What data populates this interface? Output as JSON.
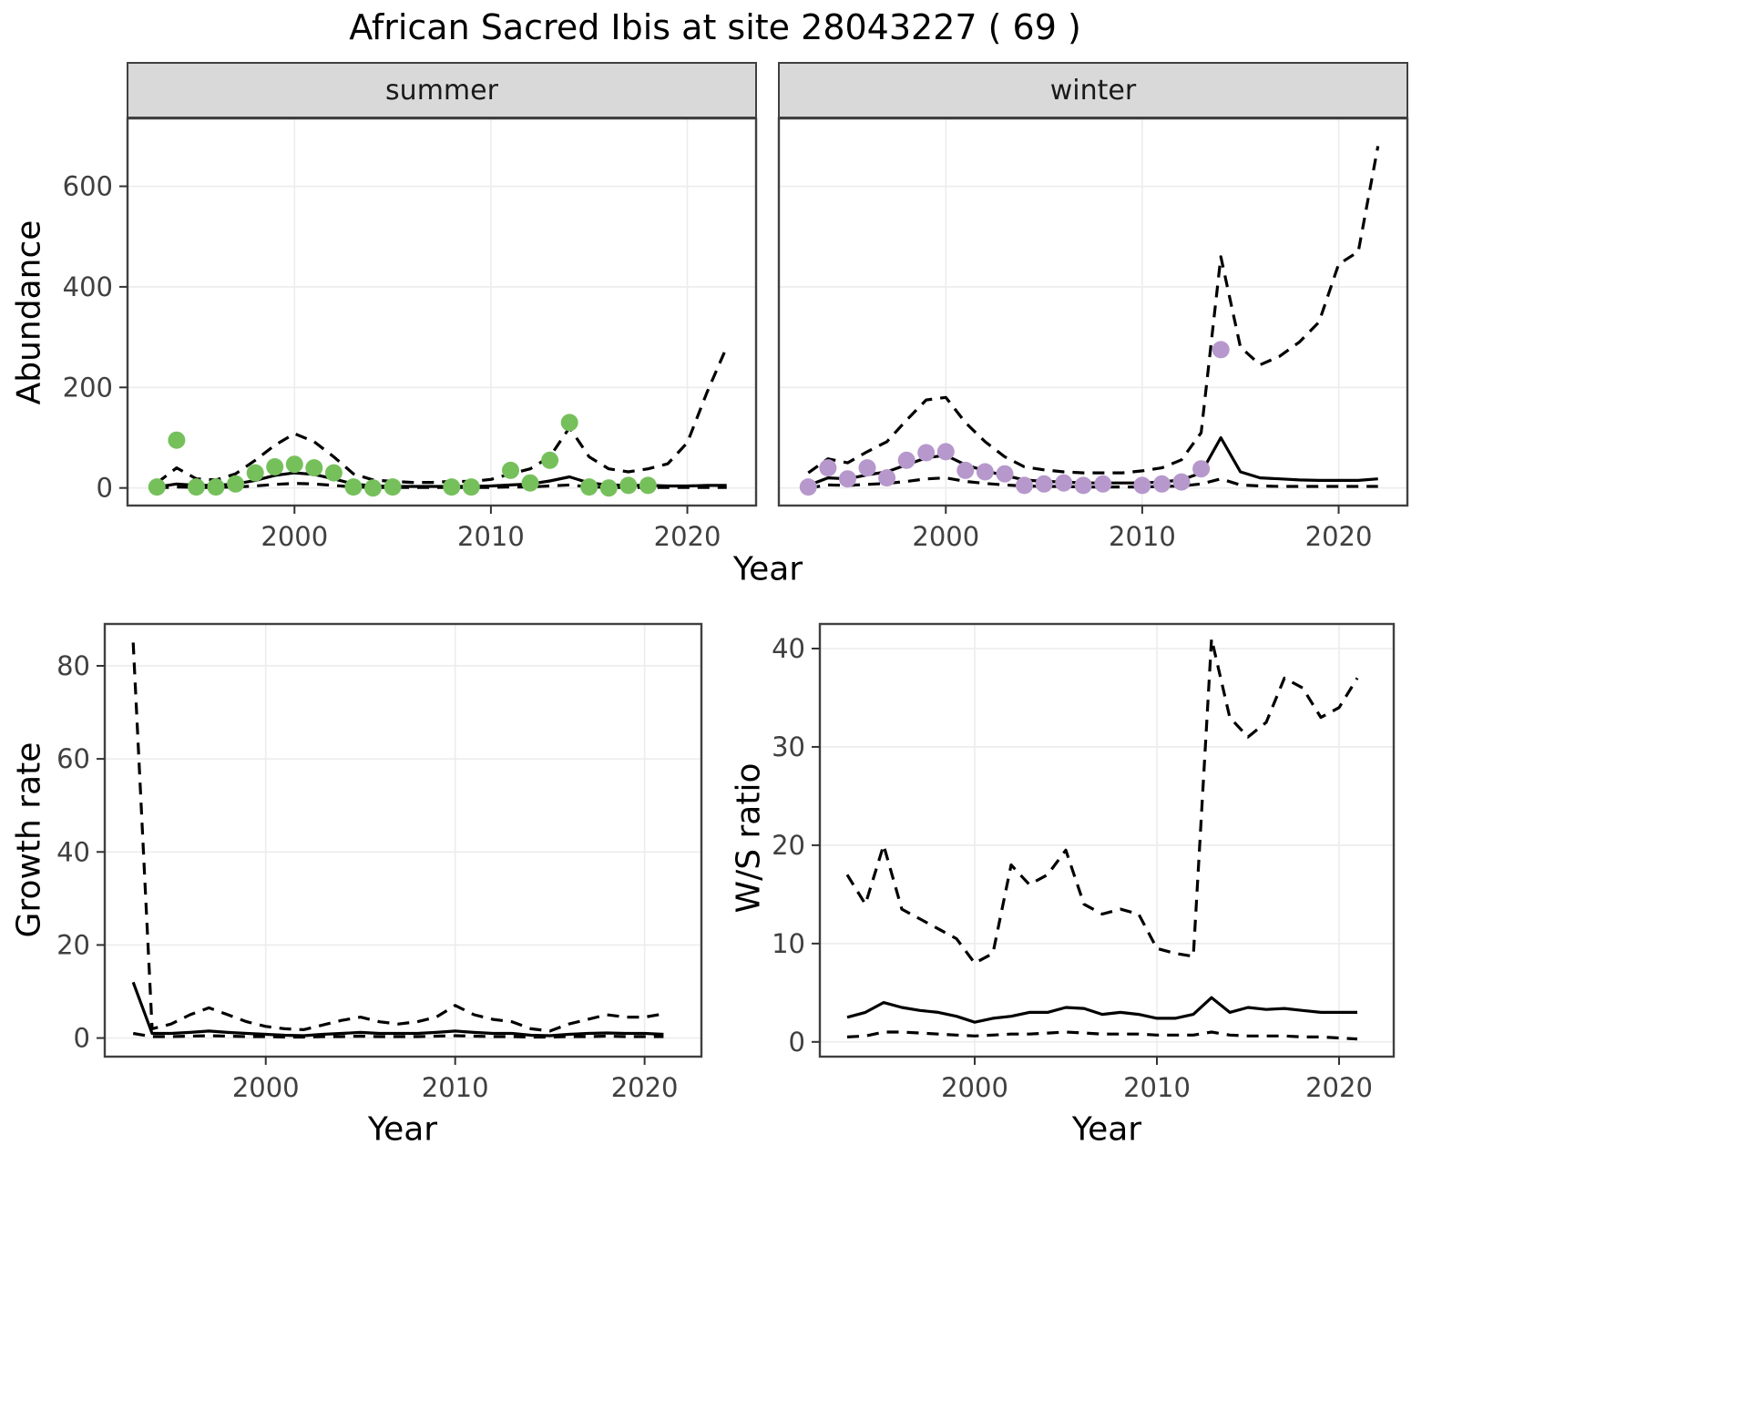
{
  "title": "African Sacred Ibis at site 28043227 ( 69 )",
  "facets": {
    "summer": "summer",
    "winter": "winter"
  },
  "axis_labels": {
    "abundance": "Abundance",
    "growth_rate": "Growth rate",
    "ws_ratio": "W/S ratio",
    "year_top": "Year",
    "year_bottom_left": "Year",
    "year_bottom_right": "Year"
  },
  "colors": {
    "summer_point": "#76c05c",
    "winter_point": "#b698cc",
    "line": "#000000",
    "strip_bg": "#d9d9d9",
    "panel_border": "#404040",
    "grid": "#ececec"
  },
  "chart_data": [
    {
      "type": "line",
      "name": "abundance-summer",
      "facet": "summer",
      "xlabel": "Year",
      "ylabel": "Abundance",
      "xlim": [
        1991.5,
        2023.5
      ],
      "ylim": [
        -35,
        735
      ],
      "xticks": [
        2000,
        2010,
        2020
      ],
      "yticks": [
        0,
        200,
        400,
        600
      ],
      "grid": true,
      "legend": "none",
      "series": [
        {
          "name": "median",
          "style": "solid",
          "x": [
            1993,
            1994,
            1995,
            1996,
            1997,
            1998,
            1999,
            2000,
            2001,
            2002,
            2003,
            2004,
            2005,
            2006,
            2007,
            2008,
            2009,
            2010,
            2011,
            2012,
            2013,
            2014,
            2015,
            2016,
            2017,
            2018,
            2019,
            2020,
            2021,
            2022
          ],
          "y": [
            2,
            8,
            5,
            5,
            8,
            15,
            25,
            30,
            27,
            18,
            8,
            4,
            3,
            3,
            3,
            3,
            3,
            4,
            6,
            8,
            14,
            22,
            10,
            6,
            5,
            5,
            4,
            4,
            5,
            5
          ]
        },
        {
          "name": "upper-ci",
          "style": "dashed",
          "x": [
            1993,
            1994,
            1995,
            1996,
            1997,
            1998,
            1999,
            2000,
            2001,
            2002,
            2003,
            2004,
            2005,
            2006,
            2007,
            2008,
            2009,
            2010,
            2011,
            2012,
            2013,
            2014,
            2015,
            2016,
            2017,
            2018,
            2019,
            2020,
            2021,
            2022
          ],
          "y": [
            10,
            40,
            18,
            16,
            28,
            55,
            85,
            108,
            92,
            62,
            28,
            16,
            13,
            11,
            11,
            13,
            13,
            17,
            28,
            38,
            62,
            120,
            62,
            38,
            32,
            38,
            48,
            90,
            190,
            280
          ]
        },
        {
          "name": "lower-ci",
          "style": "dashed",
          "x": [
            1993,
            1994,
            1995,
            1996,
            1997,
            1998,
            1999,
            2000,
            2001,
            2002,
            2003,
            2004,
            2005,
            2006,
            2007,
            2008,
            2009,
            2010,
            2011,
            2012,
            2013,
            2014,
            2015,
            2016,
            2017,
            2018,
            2019,
            2020,
            2021,
            2022
          ],
          "y": [
            0,
            2,
            1,
            1,
            2,
            4,
            7,
            9,
            8,
            5,
            2,
            1,
            1,
            1,
            1,
            1,
            1,
            1,
            2,
            2,
            4,
            6,
            2,
            1,
            1,
            1,
            1,
            1,
            1,
            1
          ]
        }
      ],
      "points": {
        "name": "observed-summer-counts",
        "color": "#76c05c",
        "x": [
          1993,
          1994,
          1995,
          1996,
          1997,
          1998,
          1999,
          2000,
          2001,
          2002,
          2003,
          2004,
          2005,
          2008,
          2009,
          2011,
          2012,
          2013,
          2014,
          2015,
          2016,
          2017,
          2018
        ],
        "y": [
          2,
          95,
          2,
          2,
          8,
          30,
          42,
          47,
          40,
          30,
          2,
          0,
          2,
          2,
          2,
          35,
          10,
          55,
          130,
          2,
          0,
          5,
          5
        ]
      }
    },
    {
      "type": "line",
      "name": "abundance-winter",
      "facet": "winter",
      "xlabel": "Year",
      "ylabel": "Abundance",
      "xlim": [
        1991.5,
        2023.5
      ],
      "ylim": [
        -35,
        735
      ],
      "xticks": [
        2000,
        2010,
        2020
      ],
      "yticks": [
        0,
        200,
        400,
        600
      ],
      "grid": true,
      "legend": "none",
      "series": [
        {
          "name": "median",
          "style": "solid",
          "x": [
            1993,
            1994,
            1995,
            1996,
            1997,
            1998,
            1999,
            2000,
            2001,
            2002,
            2003,
            2004,
            2005,
            2006,
            2007,
            2008,
            2009,
            2010,
            2011,
            2012,
            2013,
            2014,
            2015,
            2016,
            2017,
            2018,
            2019,
            2020,
            2021,
            2022
          ],
          "y": [
            5,
            20,
            18,
            26,
            32,
            46,
            60,
            65,
            46,
            34,
            25,
            16,
            13,
            12,
            10,
            10,
            10,
            10,
            12,
            16,
            30,
            100,
            32,
            20,
            18,
            16,
            15,
            15,
            15,
            18
          ]
        },
        {
          "name": "upper-ci",
          "style": "dashed",
          "x": [
            1993,
            1994,
            1995,
            1996,
            1997,
            1998,
            1999,
            2000,
            2001,
            2002,
            2003,
            2004,
            2005,
            2006,
            2007,
            2008,
            2009,
            2010,
            2011,
            2012,
            2013,
            2014,
            2015,
            2016,
            2017,
            2018,
            2019,
            2020,
            2021,
            2022
          ],
          "y": [
            30,
            58,
            50,
            72,
            92,
            135,
            175,
            180,
            130,
            92,
            62,
            42,
            36,
            32,
            30,
            30,
            30,
            34,
            40,
            56,
            110,
            460,
            280,
            245,
            262,
            290,
            330,
            445,
            470,
            680
          ]
        },
        {
          "name": "lower-ci",
          "style": "dashed",
          "x": [
            1993,
            1994,
            1995,
            1996,
            1997,
            1998,
            1999,
            2000,
            2001,
            2002,
            2003,
            2004,
            2005,
            2006,
            2007,
            2008,
            2009,
            2010,
            2011,
            2012,
            2013,
            2014,
            2015,
            2016,
            2017,
            2018,
            2019,
            2020,
            2021,
            2022
          ],
          "y": [
            0,
            6,
            5,
            7,
            9,
            13,
            18,
            20,
            13,
            9,
            6,
            4,
            3,
            3,
            2,
            2,
            2,
            2,
            3,
            4,
            8,
            18,
            6,
            4,
            3,
            3,
            3,
            3,
            3,
            3
          ]
        }
      ],
      "points": {
        "name": "observed-winter-counts",
        "color": "#b698cc",
        "x": [
          1993,
          1994,
          1995,
          1996,
          1997,
          1998,
          1999,
          2000,
          2001,
          2002,
          2003,
          2004,
          2005,
          2006,
          2007,
          2008,
          2010,
          2011,
          2012,
          2013,
          2014
        ],
        "y": [
          2,
          40,
          18,
          40,
          20,
          55,
          70,
          72,
          35,
          32,
          28,
          5,
          8,
          10,
          5,
          8,
          5,
          8,
          12,
          38,
          275
        ]
      }
    },
    {
      "type": "line",
      "name": "growth-rate",
      "xlabel": "Year",
      "ylabel": "Growth rate",
      "xlim": [
        1991.5,
        2023
      ],
      "ylim": [
        -4,
        89
      ],
      "xticks": [
        2000,
        2010,
        2020
      ],
      "yticks": [
        0,
        20,
        40,
        60,
        80
      ],
      "grid": true,
      "legend": "none",
      "series": [
        {
          "name": "median",
          "style": "solid",
          "x": [
            1993,
            1994,
            1995,
            1996,
            1997,
            1998,
            1999,
            2000,
            2001,
            2002,
            2003,
            2004,
            2005,
            2006,
            2007,
            2008,
            2009,
            2010,
            2011,
            2012,
            2013,
            2014,
            2015,
            2016,
            2017,
            2018,
            2019,
            2020,
            2021
          ],
          "y": [
            12,
            1,
            1,
            1.2,
            1.5,
            1.2,
            1,
            0.8,
            0.6,
            0.5,
            0.8,
            1,
            1.2,
            1,
            1,
            1,
            1.2,
            1.5,
            1.2,
            1,
            1,
            0.6,
            0.5,
            0.8,
            1,
            1.1,
            1,
            1,
            0.8
          ]
        },
        {
          "name": "upper-ci",
          "style": "dashed",
          "x": [
            1993,
            1994,
            1995,
            1996,
            1997,
            1998,
            1999,
            2000,
            2001,
            2002,
            2003,
            2004,
            2005,
            2006,
            2007,
            2008,
            2009,
            2010,
            2011,
            2012,
            2013,
            2014,
            2015,
            2016,
            2017,
            2018,
            2019,
            2020,
            2021
          ],
          "y": [
            85,
            2,
            3,
            5,
            6.5,
            5,
            3.5,
            2.5,
            2,
            1.8,
            2.8,
            3.8,
            4.5,
            3.5,
            3,
            3.5,
            4.5,
            7,
            5,
            4,
            3.5,
            2,
            1.5,
            3,
            4,
            5,
            4.5,
            4.5,
            5.2
          ]
        },
        {
          "name": "lower-ci",
          "style": "dashed",
          "x": [
            1993,
            1994,
            1995,
            1996,
            1997,
            1998,
            1999,
            2000,
            2001,
            2002,
            2003,
            2004,
            2005,
            2006,
            2007,
            2008,
            2009,
            2010,
            2011,
            2012,
            2013,
            2014,
            2015,
            2016,
            2017,
            2018,
            2019,
            2020,
            2021
          ],
          "y": [
            1,
            0.3,
            0.3,
            0.4,
            0.5,
            0.4,
            0.3,
            0.3,
            0.2,
            0.2,
            0.3,
            0.3,
            0.4,
            0.3,
            0.3,
            0.3,
            0.4,
            0.5,
            0.4,
            0.3,
            0.3,
            0.2,
            0.2,
            0.3,
            0.3,
            0.4,
            0.3,
            0.3,
            0.3
          ]
        }
      ]
    },
    {
      "type": "line",
      "name": "ws-ratio",
      "xlabel": "Year",
      "ylabel": "W/S ratio",
      "xlim": [
        1991.5,
        2023
      ],
      "ylim": [
        -1.5,
        42.5
      ],
      "xticks": [
        2000,
        2010,
        2020
      ],
      "yticks": [
        0,
        10,
        20,
        30,
        40
      ],
      "grid": true,
      "legend": "none",
      "series": [
        {
          "name": "median",
          "style": "solid",
          "x": [
            1993,
            1994,
            1995,
            1996,
            1997,
            1998,
            1999,
            2000,
            2001,
            2002,
            2003,
            2004,
            2005,
            2006,
            2007,
            2008,
            2009,
            2010,
            2011,
            2012,
            2013,
            2014,
            2015,
            2016,
            2017,
            2018,
            2019,
            2020,
            2021
          ],
          "y": [
            2.5,
            3,
            4,
            3.5,
            3.2,
            3,
            2.6,
            2,
            2.4,
            2.6,
            3,
            3,
            3.5,
            3.4,
            2.8,
            3,
            2.8,
            2.4,
            2.4,
            2.8,
            4.5,
            3,
            3.5,
            3.3,
            3.4,
            3.2,
            3,
            3,
            3
          ]
        },
        {
          "name": "upper-ci",
          "style": "dashed",
          "x": [
            1993,
            1994,
            1995,
            1996,
            1997,
            1998,
            1999,
            2000,
            2001,
            2002,
            2003,
            2004,
            2005,
            2006,
            2007,
            2008,
            2009,
            2010,
            2011,
            2012,
            2013,
            2014,
            2015,
            2016,
            2017,
            2018,
            2019,
            2020,
            2021
          ],
          "y": [
            17,
            14,
            20,
            13.5,
            12.5,
            11.5,
            10.5,
            8,
            9,
            18,
            16,
            17,
            19.5,
            14,
            13,
            13.5,
            13,
            9.5,
            9,
            8.7,
            41,
            33,
            31,
            32.5,
            37,
            36,
            33,
            34,
            37
          ]
        },
        {
          "name": "lower-ci",
          "style": "dashed",
          "x": [
            1993,
            1994,
            1995,
            1996,
            1997,
            1998,
            1999,
            2000,
            2001,
            2002,
            2003,
            2004,
            2005,
            2006,
            2007,
            2008,
            2009,
            2010,
            2011,
            2012,
            2013,
            2014,
            2015,
            2016,
            2017,
            2018,
            2019,
            2020,
            2021
          ],
          "y": [
            0.5,
            0.6,
            1,
            1,
            0.9,
            0.8,
            0.7,
            0.6,
            0.7,
            0.8,
            0.8,
            0.9,
            1,
            0.9,
            0.8,
            0.8,
            0.8,
            0.7,
            0.7,
            0.7,
            1,
            0.7,
            0.6,
            0.6,
            0.6,
            0.5,
            0.5,
            0.4,
            0.3
          ]
        }
      ]
    }
  ]
}
